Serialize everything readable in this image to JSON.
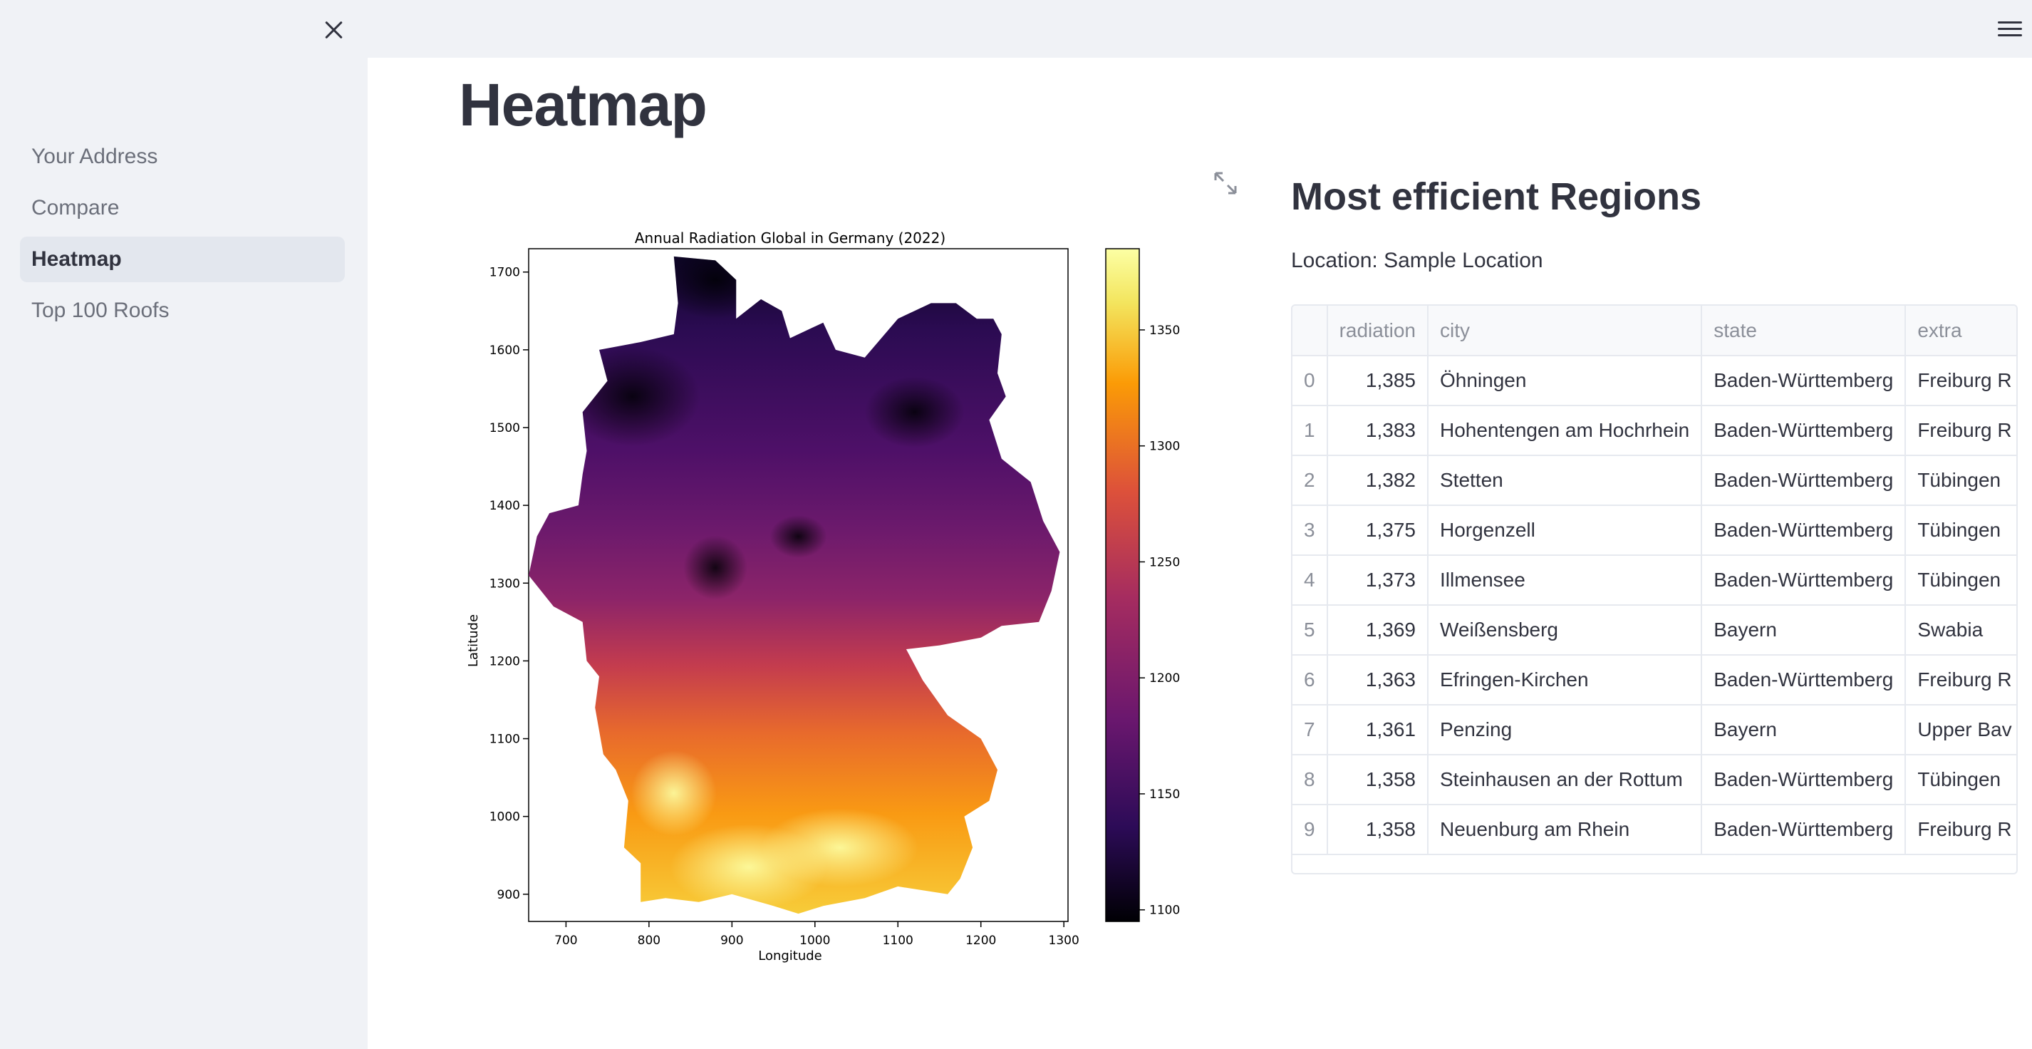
{
  "sidebar": {
    "items": [
      {
        "label": "Your Address"
      },
      {
        "label": "Compare"
      },
      {
        "label": "Heatmap"
      },
      {
        "label": "Top 100 Roofs"
      }
    ]
  },
  "main": {
    "title": "Heatmap",
    "section_title": "Most efficient Regions",
    "location": "Location: Sample Location"
  },
  "table": {
    "headers": [
      "",
      "radiation",
      "city",
      "state",
      "extra"
    ],
    "rows": [
      {
        "idx": "0",
        "radiation": "1,385",
        "city": "Öhningen",
        "state": "Baden-Württemberg",
        "extra": "Freiburg R"
      },
      {
        "idx": "1",
        "radiation": "1,383",
        "city": "Hohentengen am Hochrhein",
        "state": "Baden-Württemberg",
        "extra": "Freiburg R"
      },
      {
        "idx": "2",
        "radiation": "1,382",
        "city": "Stetten",
        "state": "Baden-Württemberg",
        "extra": "Tübingen"
      },
      {
        "idx": "3",
        "radiation": "1,375",
        "city": "Horgenzell",
        "state": "Baden-Württemberg",
        "extra": "Tübingen"
      },
      {
        "idx": "4",
        "radiation": "1,373",
        "city": "Illmensee",
        "state": "Baden-Württemberg",
        "extra": "Tübingen"
      },
      {
        "idx": "5",
        "radiation": "1,369",
        "city": "Weißensberg",
        "state": "Bayern",
        "extra": "Swabia"
      },
      {
        "idx": "6",
        "radiation": "1,363",
        "city": "Efringen-Kirchen",
        "state": "Baden-Württemberg",
        "extra": "Freiburg R"
      },
      {
        "idx": "7",
        "radiation": "1,361",
        "city": "Penzing",
        "state": "Bayern",
        "extra": "Upper Bav"
      },
      {
        "idx": "8",
        "radiation": "1,358",
        "city": "Steinhausen an der Rottum",
        "state": "Baden-Württemberg",
        "extra": "Tübingen"
      },
      {
        "idx": "9",
        "radiation": "1,358",
        "city": "Neuenburg am Rhein",
        "state": "Baden-Württemberg",
        "extra": "Freiburg R"
      }
    ]
  },
  "chart_data": {
    "type": "heatmap",
    "title": "Annual Radiation Global in Germany (2022)",
    "xlabel": "Longitude",
    "ylabel": "Latitude",
    "xlim": [
      655,
      1305
    ],
    "ylim": [
      865,
      1730
    ],
    "xticks": [
      700,
      800,
      900,
      1000,
      1100,
      1200,
      1300
    ],
    "yticks": [
      900,
      1000,
      1100,
      1200,
      1300,
      1400,
      1500,
      1600,
      1700
    ],
    "colorbar": {
      "range": [
        1095,
        1385
      ],
      "ticks": [
        1100,
        1150,
        1200,
        1250,
        1300,
        1350
      ],
      "colormap": "inferno"
    },
    "colors": [
      "#000004",
      "#2c0b57",
      "#6a176e",
      "#a52c60",
      "#dd513a",
      "#fb9b06",
      "#f3e55e",
      "#fcffa4"
    ]
  }
}
